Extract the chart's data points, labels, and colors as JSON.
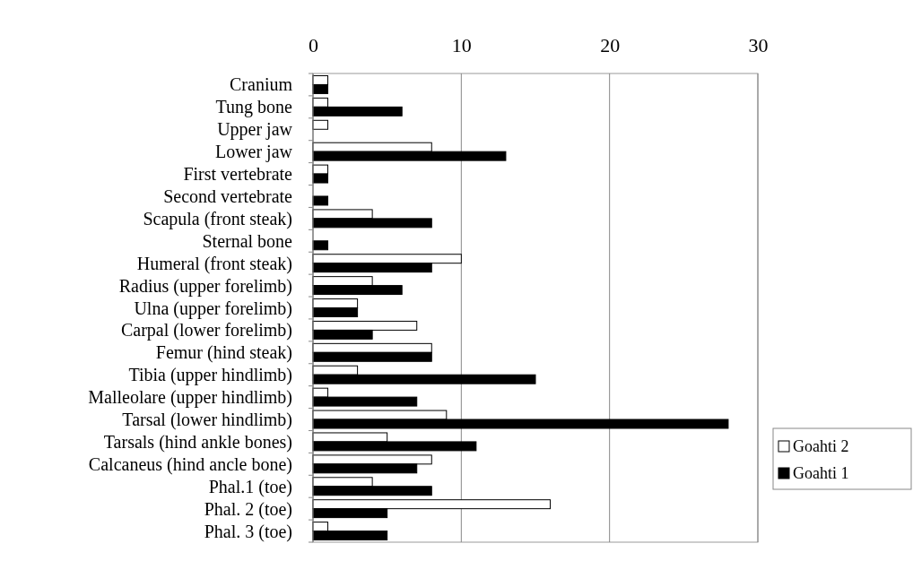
{
  "chart_data": {
    "type": "bar",
    "orientation": "horizontal",
    "categories": [
      "Cranium",
      "Tung bone",
      "Upper jaw",
      "Lower jaw",
      "First vertebrate",
      "Second vertebrate",
      "Scapula (front steak)",
      "Sternal bone",
      "Humeral (front steak)",
      "Radius (upper forelimb)",
      "Ulna (upper forelimb)",
      "Carpal (lower forelimb)",
      "Femur (hind steak)",
      "Tibia (upper hindlimb)",
      "Malleolare (upper hindlimb)",
      "Tarsal (lower hindlimb)",
      "Tarsals (hind ankle bones)",
      "Calcaneus (hind ancle bone)",
      "Phal.1 (toe)",
      "Phal. 2 (toe)",
      "Phal. 3 (toe)"
    ],
    "series": [
      {
        "name": "Goahti 2",
        "color": "#ffffff",
        "values": [
          1,
          1,
          1,
          8,
          1,
          0,
          4,
          0,
          10,
          4,
          3,
          7,
          8,
          3,
          1,
          9,
          5,
          8,
          4,
          16,
          1
        ]
      },
      {
        "name": "Goahti 1",
        "color": "#000000",
        "values": [
          1,
          6,
          0,
          13,
          1,
          1,
          8,
          1,
          8,
          6,
          3,
          4,
          8,
          15,
          7,
          28,
          11,
          7,
          8,
          5,
          5
        ]
      }
    ],
    "xlim": [
      0,
      30
    ],
    "xticks": [
      0,
      10,
      20,
      30
    ],
    "grid": "x",
    "legend": "right"
  }
}
